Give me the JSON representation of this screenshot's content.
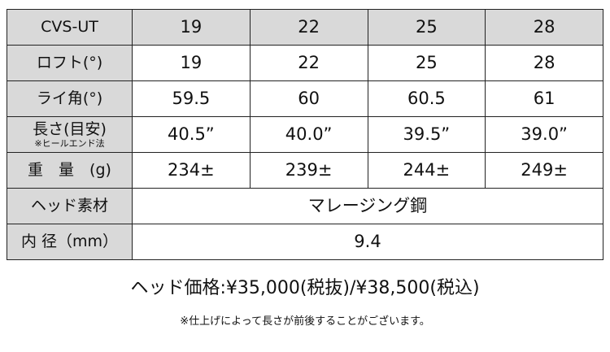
{
  "header": [
    "CVS-UT",
    "19",
    "22",
    "25",
    "28"
  ],
  "rows": [
    {
      "label": "ロフト(°)",
      "values": [
        "19",
        "22",
        "25",
        "28"
      ]
    },
    {
      "label": "ライ角(°)",
      "values": [
        "59.5",
        "60",
        "60.5",
        "61"
      ]
    },
    {
      "label": "長さ(目安)",
      "sublabel": "※ヒールエンド法",
      "values": [
        "40.5”",
        "40.0”",
        "39.5”",
        "39.0”"
      ]
    },
    {
      "label": "重　量　(g)",
      "values": [
        "234±",
        "239±",
        "244±",
        "249±"
      ]
    },
    {
      "label": "ヘッド素材",
      "value": "マレージング鋼"
    },
    {
      "label": "内 径（mm）",
      "value": "9.4"
    }
  ],
  "price": "ヘッド価格:¥35,000(税抜)/¥38,500(税込)",
  "note": "※仕上げによって長さが前後することがございます。"
}
